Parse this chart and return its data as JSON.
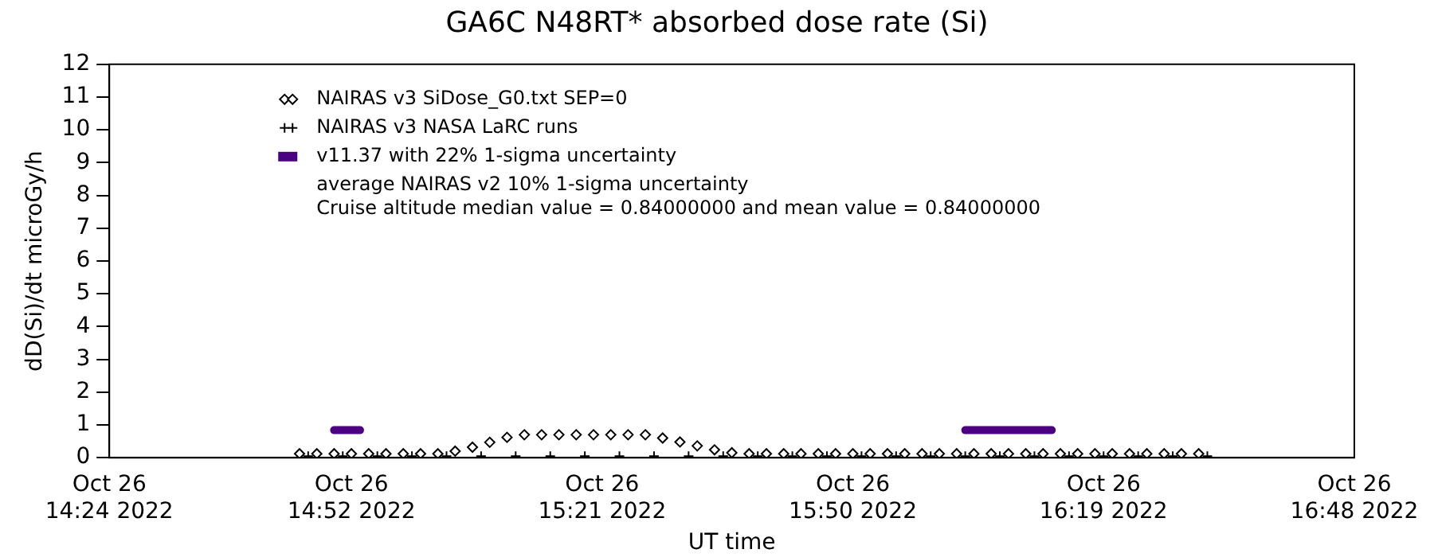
{
  "chart_data": {
    "type": "line",
    "title": "GA6C N48RT* absorbed dose rate (Si)",
    "xlabel": "UT time",
    "ylabel": "dD(Si)/dt microGy/h",
    "xlim": [
      "2022-10-26T14:24",
      "2022-10-26T16:48"
    ],
    "xticks": [
      {
        "value": "2022-10-26T14:24",
        "label": "Oct 26\n14:24 2022"
      },
      {
        "value": "2022-10-26T14:52",
        "label": "Oct 26\n14:52 2022"
      },
      {
        "value": "2022-10-26T15:21",
        "label": "Oct 26\n15:21 2022"
      },
      {
        "value": "2022-10-26T15:50",
        "label": "Oct 26\n15:50 2022"
      },
      {
        "value": "2022-10-26T16:19",
        "label": "Oct 26\n16:19 2022"
      },
      {
        "value": "2022-10-26T16:48",
        "label": "Oct 26\n16:48 2022"
      }
    ],
    "ylim": [
      0,
      12
    ],
    "yticks": [
      0,
      1,
      2,
      3,
      4,
      5,
      6,
      7,
      8,
      9,
      10,
      11,
      12
    ],
    "grid": false,
    "legend": "top left",
    "annotations": [
      "average NAIRAS v2 10% 1-sigma uncertainty",
      "Cruise altitude median value = 0.84000000 and mean value = 0.84000000"
    ],
    "series": [
      {
        "name": "NAIRAS v3 SiDose_G0.txt SEP=0",
        "type": "scatter",
        "marker": "diamond",
        "color": "#000000",
        "x": [
          "2022-10-26T14:46",
          "2022-10-26T14:48",
          "2022-10-26T14:50",
          "2022-10-26T14:52",
          "2022-10-26T14:54",
          "2022-10-26T14:56",
          "2022-10-26T14:58",
          "2022-10-26T15:00",
          "2022-10-26T15:02",
          "2022-10-26T15:04",
          "2022-10-26T15:06",
          "2022-10-26T15:08",
          "2022-10-26T15:10",
          "2022-10-26T15:12",
          "2022-10-26T15:14",
          "2022-10-26T15:16",
          "2022-10-26T15:18",
          "2022-10-26T15:20",
          "2022-10-26T15:22",
          "2022-10-26T15:24",
          "2022-10-26T15:26",
          "2022-10-26T15:28",
          "2022-10-26T15:30",
          "2022-10-26T15:32",
          "2022-10-26T15:34",
          "2022-10-26T15:36",
          "2022-10-26T15:38",
          "2022-10-26T15:40",
          "2022-10-26T15:42",
          "2022-10-26T15:44",
          "2022-10-26T15:46",
          "2022-10-26T15:48",
          "2022-10-26T15:50",
          "2022-10-26T15:52",
          "2022-10-26T15:54",
          "2022-10-26T15:56",
          "2022-10-26T15:58",
          "2022-10-26T16:00",
          "2022-10-26T16:02",
          "2022-10-26T16:04",
          "2022-10-26T16:06",
          "2022-10-26T16:08",
          "2022-10-26T16:10",
          "2022-10-26T16:12",
          "2022-10-26T16:14",
          "2022-10-26T16:16",
          "2022-10-26T16:18",
          "2022-10-26T16:20",
          "2022-10-26T16:22",
          "2022-10-26T16:24",
          "2022-10-26T16:26",
          "2022-10-26T16:28",
          "2022-10-26T16:30"
        ],
        "values": [
          0.12,
          0.12,
          0.12,
          0.12,
          0.12,
          0.12,
          0.12,
          0.12,
          0.12,
          0.2,
          0.32,
          0.47,
          0.62,
          0.7,
          0.7,
          0.7,
          0.7,
          0.7,
          0.7,
          0.7,
          0.7,
          0.6,
          0.48,
          0.36,
          0.24,
          0.15,
          0.12,
          0.12,
          0.12,
          0.12,
          0.12,
          0.12,
          0.12,
          0.12,
          0.12,
          0.12,
          0.12,
          0.12,
          0.12,
          0.12,
          0.12,
          0.12,
          0.12,
          0.12,
          0.12,
          0.12,
          0.12,
          0.12,
          0.12,
          0.12,
          0.12,
          0.12,
          0.12
        ]
      },
      {
        "name": "NAIRAS v3 NASA LaRC runs",
        "type": "scatter",
        "marker": "cross",
        "color": "#000000",
        "x": [
          "2022-10-26T14:47",
          "2022-10-26T14:51",
          "2022-10-26T14:55",
          "2022-10-26T14:59",
          "2022-10-26T15:03",
          "2022-10-26T15:07",
          "2022-10-26T15:11",
          "2022-10-26T15:15",
          "2022-10-26T15:19",
          "2022-10-26T15:23",
          "2022-10-26T15:27",
          "2022-10-26T15:31",
          "2022-10-26T15:35",
          "2022-10-26T15:39",
          "2022-10-26T15:43",
          "2022-10-26T15:47",
          "2022-10-26T15:51",
          "2022-10-26T15:55",
          "2022-10-26T15:59",
          "2022-10-26T16:03",
          "2022-10-26T16:07",
          "2022-10-26T16:11",
          "2022-10-26T16:15",
          "2022-10-26T16:19",
          "2022-10-26T16:23",
          "2022-10-26T16:27",
          "2022-10-26T16:31"
        ],
        "values": [
          0.05,
          0.05,
          0.05,
          0.05,
          0.05,
          0.05,
          0.05,
          0.05,
          0.05,
          0.05,
          0.05,
          0.05,
          0.05,
          0.05,
          0.05,
          0.05,
          0.05,
          0.05,
          0.05,
          0.05,
          0.05,
          0.05,
          0.05,
          0.05,
          0.05,
          0.05,
          0.05
        ]
      },
      {
        "name": "v11.37 with 22% 1-sigma uncertainty",
        "marker": "none",
        "color": "#4b0082",
        "x": [
          "2022-10-26T14:50",
          "2022-10-26T14:52",
          "2022-10-26T14:53",
          "2022-10-26T15:30",
          "2022-10-26T16:03",
          "2022-10-26T16:06",
          "2022-10-26T16:09",
          "2022-10-26T16:12",
          "2022-10-26T16:13"
        ],
        "values": [
          0.84,
          0.84,
          0.84,
          null,
          0.84,
          0.84,
          0.84,
          0.84,
          0.84
        ]
      }
    ]
  }
}
